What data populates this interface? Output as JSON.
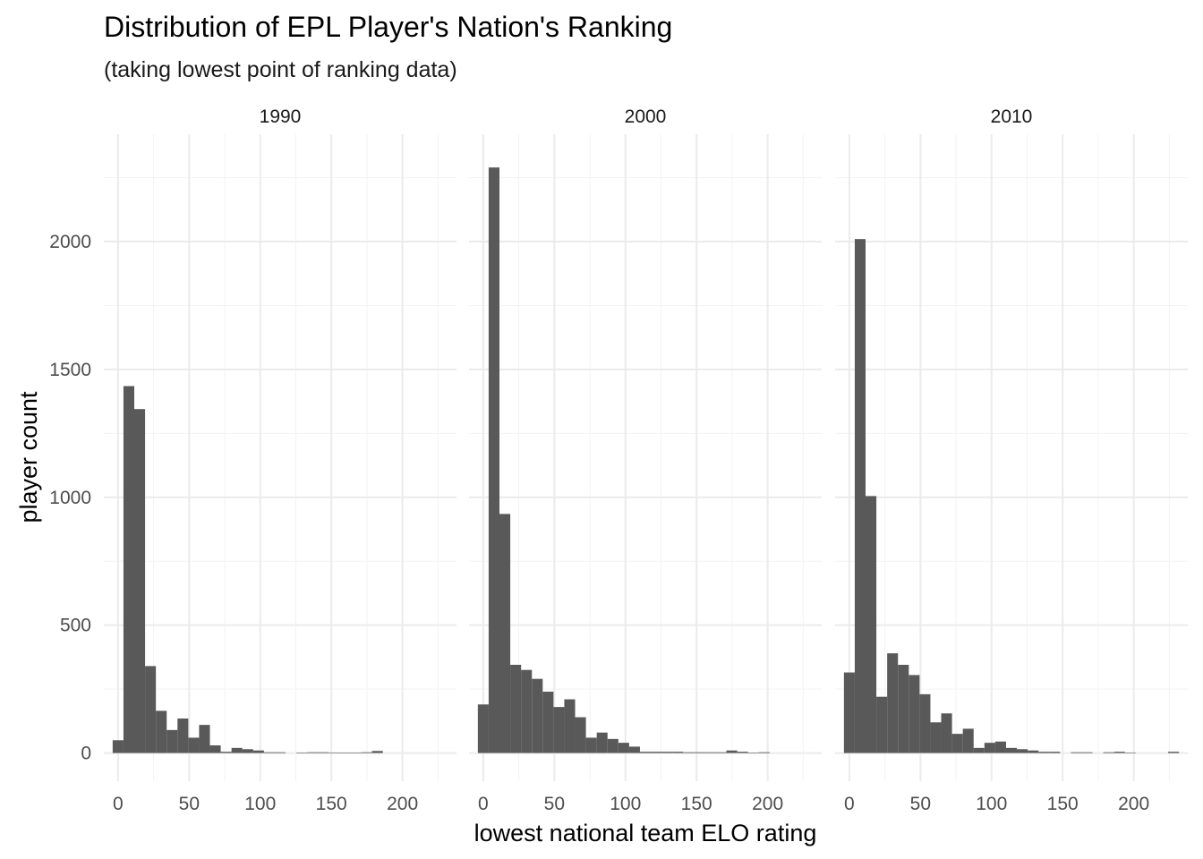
{
  "chart_data": {
    "type": "bar",
    "title": "Distribution of EPL Player's Nation's Ranking",
    "subtitle": "(taking lowest point of ranking data)",
    "xlabel": "lowest national team ELO rating",
    "ylabel": "player count",
    "x_ticks": [
      0,
      50,
      100,
      150,
      200
    ],
    "y_ticks": [
      0,
      500,
      1000,
      1500,
      2000
    ],
    "xlim": [
      -10,
      238
    ],
    "ylim": [
      -110,
      2420
    ],
    "bin_width": 7.6,
    "grid": true,
    "color": "#595959",
    "facets": [
      {
        "label": "1990",
        "bin_starts": [
          -3.8,
          3.8,
          11.4,
          19,
          26.6,
          34.2,
          41.8,
          49.4,
          57,
          64.6,
          72.2,
          79.8,
          87.4,
          95,
          102.6,
          110.2,
          117.8,
          125.4,
          133,
          140.6,
          148.2,
          155.8,
          163.4,
          171,
          178.6
        ],
        "values": [
          50,
          1435,
          1345,
          340,
          165,
          90,
          135,
          60,
          110,
          30,
          5,
          20,
          15,
          10,
          3,
          3,
          0,
          2,
          3,
          3,
          2,
          2,
          2,
          3,
          8
        ]
      },
      {
        "label": "2000",
        "bin_starts": [
          -3.8,
          3.8,
          11.4,
          19,
          26.6,
          34.2,
          41.8,
          49.4,
          57,
          64.6,
          72.2,
          79.8,
          87.4,
          95,
          102.6,
          110.2,
          117.8,
          125.4,
          133,
          140.6,
          148.2,
          155.8,
          163.4,
          171,
          178.6,
          186.2,
          193.8
        ],
        "values": [
          190,
          2290,
          935,
          345,
          325,
          290,
          240,
          180,
          210,
          140,
          60,
          80,
          55,
          40,
          25,
          5,
          5,
          5,
          5,
          3,
          3,
          3,
          3,
          10,
          5,
          2,
          3
        ]
      },
      {
        "label": "2010",
        "bin_starts": [
          -3.8,
          3.8,
          11.4,
          19,
          26.6,
          34.2,
          41.8,
          49.4,
          57,
          64.6,
          72.2,
          79.8,
          87.4,
          95,
          102.6,
          110.2,
          117.8,
          125.4,
          133,
          140.6,
          148.2,
          155.8,
          163.4,
          171,
          178.6,
          186.2,
          193.8,
          201.4,
          209,
          216.6,
          224.2
        ],
        "values": [
          315,
          2010,
          1005,
          220,
          390,
          345,
          305,
          230,
          120,
          155,
          75,
          95,
          20,
          40,
          45,
          20,
          15,
          10,
          5,
          5,
          0,
          3,
          3,
          0,
          3,
          5,
          2,
          0,
          0,
          0,
          5
        ]
      }
    ]
  }
}
